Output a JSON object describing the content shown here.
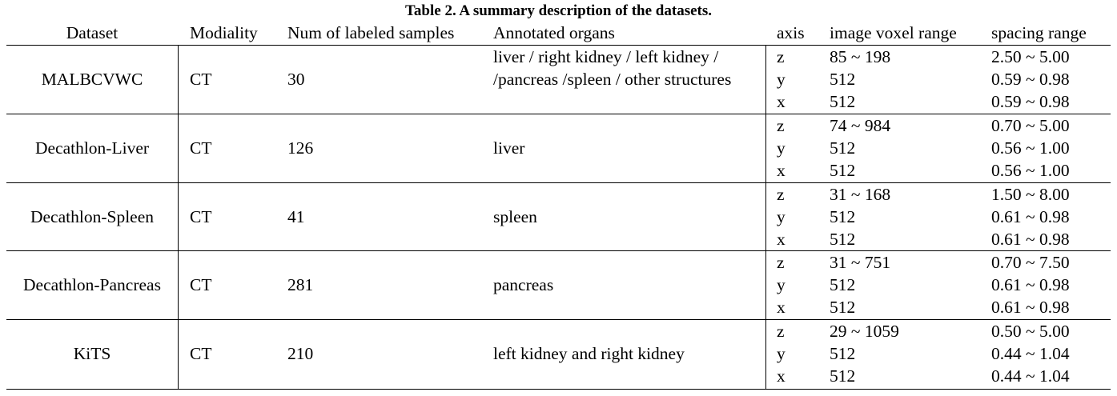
{
  "caption": "Table 2. A summary description of the datasets.",
  "headers": {
    "dataset": "Dataset",
    "modality": "Modiality",
    "num": "Num of labeled samples",
    "organs": "Annotated organs",
    "axis": "axis",
    "voxel": "image voxel range",
    "spacing": "spacing range"
  },
  "rows": [
    {
      "dataset": "MALBCVWC",
      "modality": "CT",
      "num": "30",
      "organs_line1": "liver / right kidney / left kidney /",
      "organs_line2": "/pancreas /spleen / other structures",
      "axes": [
        "z",
        "y",
        "x"
      ],
      "voxel": [
        "85 ~ 198",
        "512",
        "512"
      ],
      "spacing": [
        "2.50 ~ 5.00",
        "0.59 ~ 0.98",
        "0.59 ~ 0.98"
      ]
    },
    {
      "dataset": "Decathlon-Liver",
      "modality": "CT",
      "num": "126",
      "organs": "liver",
      "axes": [
        "z",
        "y",
        "x"
      ],
      "voxel": [
        "74 ~ 984",
        "512",
        "512"
      ],
      "spacing": [
        "0.70 ~ 5.00",
        "0.56 ~ 1.00",
        "0.56 ~ 1.00"
      ]
    },
    {
      "dataset": "Decathlon-Spleen",
      "modality": "CT",
      "num": "41",
      "organs": "spleen",
      "axes": [
        "z",
        "y",
        "x"
      ],
      "voxel": [
        "31 ~ 168",
        "512",
        "512"
      ],
      "spacing": [
        "1.50 ~ 8.00",
        "0.61 ~ 0.98",
        "0.61 ~ 0.98"
      ]
    },
    {
      "dataset": "Decathlon-Pancreas",
      "modality": "CT",
      "num": "281",
      "organs": "pancreas",
      "axes": [
        "z",
        "y",
        "x"
      ],
      "voxel": [
        "31 ~ 751",
        "512",
        "512"
      ],
      "spacing": [
        "0.70 ~ 7.50",
        "0.61 ~ 0.98",
        "0.61 ~ 0.98"
      ]
    },
    {
      "dataset": "KiTS",
      "modality": "CT",
      "num": "210",
      "organs": "left kidney and right kidney",
      "axes": [
        "z",
        "y",
        "x"
      ],
      "voxel": [
        "29 ~ 1059",
        "512",
        "512"
      ],
      "spacing": [
        "0.50 ~ 5.00",
        "0.44 ~ 1.04",
        "0.44 ~ 1.04"
      ]
    }
  ]
}
